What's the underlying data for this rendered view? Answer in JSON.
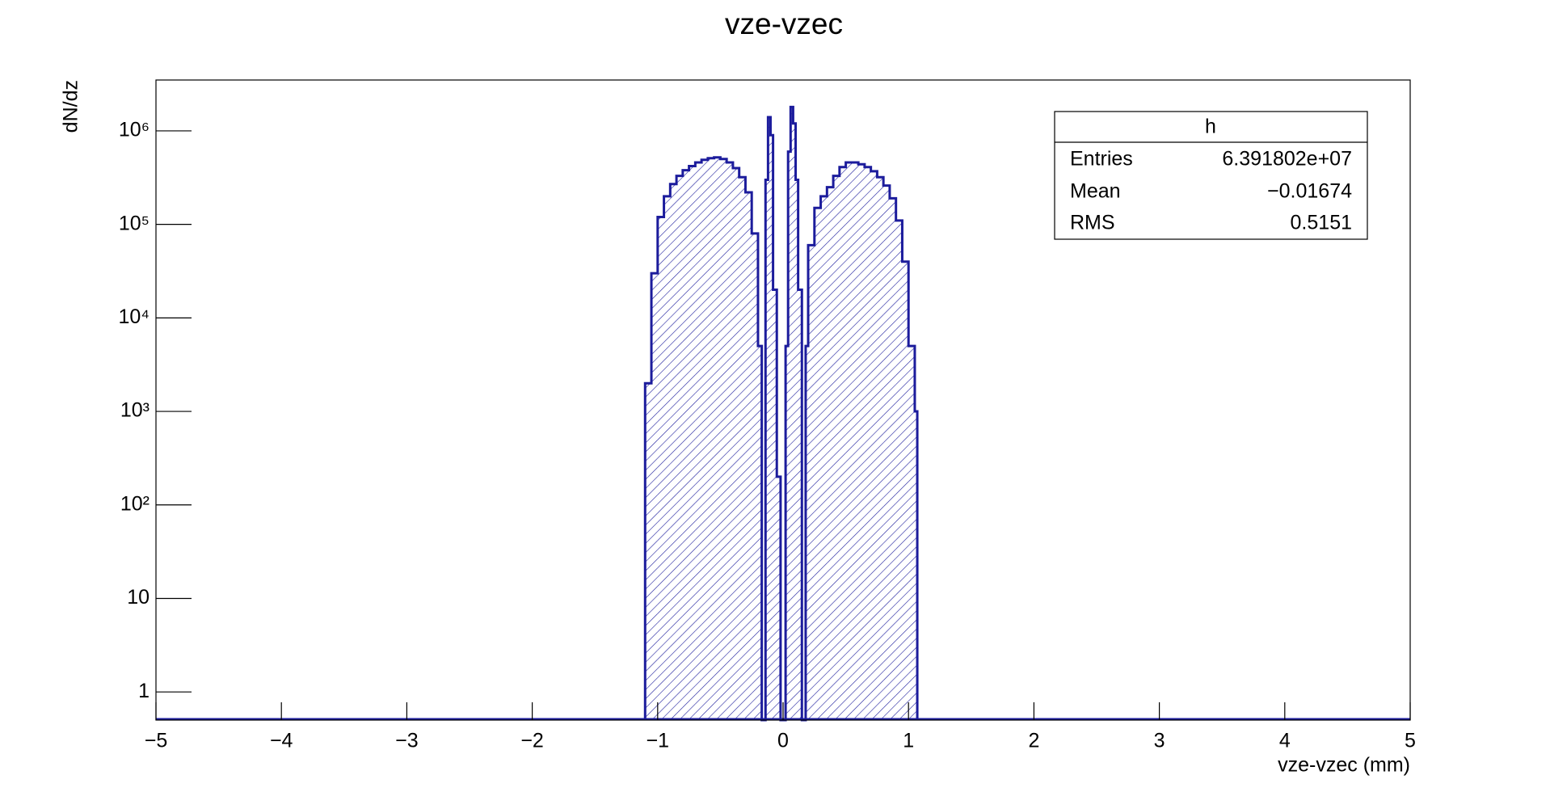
{
  "chart_data": {
    "type": "histogram",
    "title": "vze-vzec",
    "x_label": "vze-vzec (mm)",
    "y_label": "dN/dz",
    "color": "#1c1c9c",
    "log_y": true,
    "bins": [
      -1.1,
      -1.05,
      -1.0,
      -0.95,
      -0.9,
      -0.85,
      -0.8,
      -0.75,
      -0.7,
      -0.65,
      -0.6,
      -0.55,
      -0.5,
      -0.45,
      -0.4,
      -0.35,
      -0.3,
      -0.25,
      -0.2,
      -0.17,
      -0.14,
      -0.12,
      -0.1,
      -0.08,
      -0.05,
      -0.02,
      0.02,
      0.04,
      0.06,
      0.08,
      0.1,
      0.12,
      0.15,
      0.18,
      0.2,
      0.25,
      0.3,
      0.35,
      0.4,
      0.45,
      0.5,
      0.55,
      0.6,
      0.65,
      0.7,
      0.75,
      0.8,
      0.85,
      0.9,
      0.95,
      1.0,
      1.05,
      1.07
    ],
    "values": [
      2000,
      30000,
      120000,
      200000,
      270000,
      330000,
      380000,
      420000,
      460000,
      490000,
      510000,
      520000,
      500000,
      460000,
      400000,
      320000,
      220000,
      80000,
      5000,
      0,
      300000,
      1400000,
      900000,
      20000,
      200,
      0,
      5000,
      600000,
      1800000,
      1200000,
      300000,
      20000,
      0,
      5000,
      60000,
      150000,
      200000,
      250000,
      330000,
      410000,
      460000,
      460000,
      440000,
      410000,
      370000,
      320000,
      260000,
      190000,
      110000,
      40000,
      5000,
      1000
    ],
    "xlim": [
      -5,
      5
    ],
    "xticks": [
      {
        "value": -5,
        "label": "−5"
      },
      {
        "value": -4,
        "label": "−4"
      },
      {
        "value": -3,
        "label": "−3"
      },
      {
        "value": -2,
        "label": "−2"
      },
      {
        "value": -1,
        "label": "−1"
      },
      0,
      1,
      2,
      3,
      4,
      5
    ],
    "ylim": [
      0.5,
      3500000
    ],
    "yticks": [
      1,
      10,
      {
        "value": 100,
        "label": "10²"
      },
      {
        "value": 1000,
        "label": "10³"
      },
      {
        "value": 10000,
        "label": "10⁴"
      },
      {
        "value": 100000,
        "label": "10⁵"
      },
      {
        "value": 1000000,
        "label": "10⁶"
      }
    ],
    "stats": {
      "title": "h",
      "rows": [
        {
          "label": "Entries",
          "value": "6.391802e+07"
        },
        {
          "label": "Mean",
          "value": "−0.01674"
        },
        {
          "label": "RMS",
          "value": "0.5151"
        }
      ]
    }
  }
}
